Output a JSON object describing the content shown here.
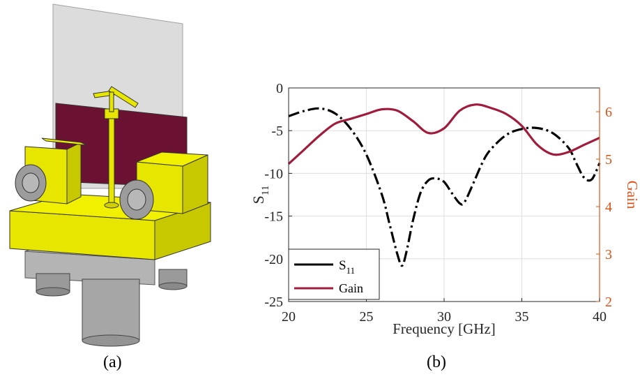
{
  "figure": {
    "caption_a": "(a)",
    "caption_b": "(b)"
  },
  "colors": {
    "s11": "#000000",
    "gain": "#a01c3c",
    "right_axis": "#d95319",
    "pcb": "#6b1233",
    "connector": "#e6e600",
    "metal": "#a8a8a8",
    "substrate": "#dcdcdc"
  },
  "chart_data": {
    "type": "line",
    "xlabel": "Frequency [GHz]",
    "ylabel": "S",
    "ylabel_sub": "11",
    "ylabel_right": "Gain",
    "xlim": [
      20,
      40
    ],
    "ylim": [
      -25,
      0
    ],
    "ylim_right": [
      2,
      6.5
    ],
    "xticks": [
      20,
      25,
      30,
      35,
      40
    ],
    "yticks": [
      0,
      -5,
      -10,
      -15,
      -20,
      -25
    ],
    "yticks_right": [
      2,
      3,
      4,
      5,
      6
    ],
    "grid": true,
    "legend_position": "bottom-left",
    "series": [
      {
        "name": "S",
        "name_sub": "11",
        "axis": "left",
        "style": "dash-dot",
        "x": [
          20,
          21,
          22,
          23,
          24,
          25,
          26,
          26.5,
          27,
          27.3,
          27.6,
          28,
          28.5,
          29,
          29.5,
          30,
          30.5,
          31,
          31.3,
          31.8,
          32.5,
          33,
          34,
          35,
          36,
          37,
          38,
          38.5,
          39,
          39.5,
          40
        ],
        "y": [
          -3.3,
          -2.7,
          -2.4,
          -3.0,
          -4.8,
          -7.8,
          -12.5,
          -16.0,
          -19.5,
          -20.8,
          -19.0,
          -15.5,
          -12.2,
          -10.8,
          -10.6,
          -11.0,
          -12.3,
          -13.5,
          -13.4,
          -11.5,
          -8.6,
          -7.2,
          -5.5,
          -4.8,
          -4.7,
          -5.3,
          -7.0,
          -8.8,
          -10.5,
          -10.7,
          -8.8
        ]
      },
      {
        "name": "Gain",
        "axis": "right",
        "style": "solid",
        "x": [
          20,
          21,
          22,
          23,
          24,
          25,
          26,
          27,
          28,
          29,
          30,
          31,
          32,
          33,
          34,
          35,
          36,
          37,
          38,
          39,
          40
        ],
        "y": [
          4.9,
          5.2,
          5.5,
          5.75,
          5.85,
          5.95,
          6.05,
          6.02,
          5.8,
          5.55,
          5.65,
          6.02,
          6.15,
          6.08,
          5.95,
          5.7,
          5.3,
          5.1,
          5.15,
          5.3,
          5.45
        ]
      }
    ]
  }
}
